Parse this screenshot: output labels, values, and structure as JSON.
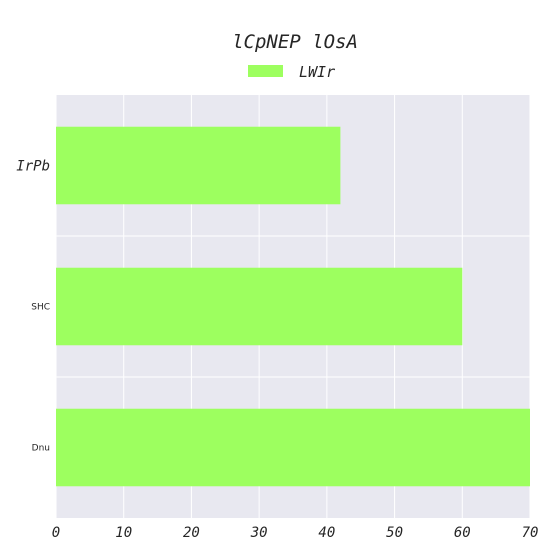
{
  "chart_data": {
    "type": "bar",
    "orientation": "horizontal",
    "title": "lCpNEP lOsA",
    "categories": [
      "IrPb",
      "SHC",
      "Dnu"
    ],
    "series": [
      {
        "name": "LWIr",
        "values": [
          42,
          60,
          70
        ],
        "color": "#9dff5f"
      }
    ],
    "xlim": [
      0,
      70
    ],
    "xticks": [
      0,
      10,
      20,
      30,
      40,
      50,
      60,
      70
    ],
    "grid": true,
    "legend_position": "top-center",
    "background": "#e8e8f0"
  }
}
